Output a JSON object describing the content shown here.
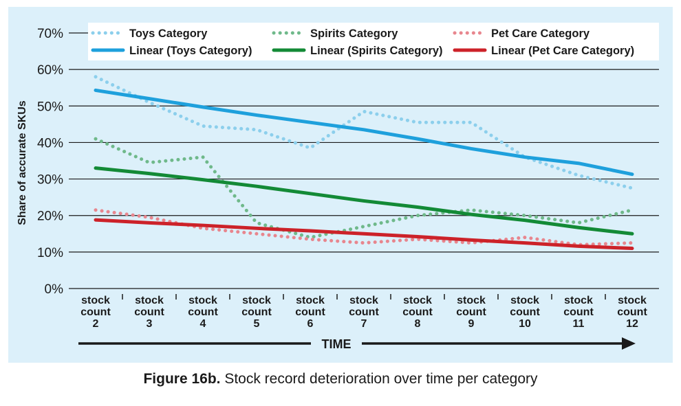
{
  "caption": {
    "label": "Figure 16b.",
    "text": " Stock record deterioration over time per category"
  },
  "chart_data": {
    "type": "line",
    "ylabel": "Share of accurate SKUs",
    "xlabel": "TIME",
    "ylim": [
      0,
      70
    ],
    "yticks": [
      "0%",
      "10%",
      "20%",
      "30%",
      "40%",
      "50%",
      "60%",
      "70%"
    ],
    "categories": [
      [
        "stock",
        "count",
        "2"
      ],
      [
        "stock",
        "count",
        "3"
      ],
      [
        "stock",
        "count",
        "4"
      ],
      [
        "stock",
        "count",
        "5"
      ],
      [
        "stock",
        "count",
        "6"
      ],
      [
        "stock",
        "count",
        "7"
      ],
      [
        "stock",
        "count",
        "8"
      ],
      [
        "stock",
        "count",
        "9"
      ],
      [
        "stock",
        "count",
        "10"
      ],
      [
        "stock",
        "count",
        "11"
      ],
      [
        "stock",
        "count",
        "12"
      ]
    ],
    "grid": true,
    "legend_position": "top",
    "series": [
      {
        "name": "Toys Category",
        "style": "dotted",
        "color": "#8ccfec",
        "values": [
          58,
          51,
          44.5,
          43.5,
          38.5,
          48.5,
          45.5,
          45.5,
          36,
          31,
          27.5
        ]
      },
      {
        "name": "Spirits Category",
        "style": "dotted",
        "color": "#6fb98a",
        "values": [
          41,
          34.5,
          36,
          18,
          14,
          17,
          20,
          21.5,
          20,
          18,
          21.5
        ]
      },
      {
        "name": "Pet Care Category",
        "style": "dotted",
        "color": "#e8868e",
        "values": [
          21.5,
          19.5,
          16.5,
          15,
          13.5,
          12.5,
          13.5,
          12.5,
          14,
          12,
          12.5
        ]
      },
      {
        "name": "Linear (Toys Category)",
        "style": "solid",
        "color": "#1ea0dc",
        "values": [
          54.3,
          52,
          49.7,
          47.5,
          45.5,
          43.5,
          41,
          38.3,
          36,
          34.3,
          31.3
        ]
      },
      {
        "name": "Linear (Spirits Category)",
        "style": "solid",
        "color": "#138a36",
        "values": [
          33,
          31.5,
          29.8,
          28,
          26,
          24,
          22.3,
          20.3,
          18.7,
          16.7,
          15
        ]
      },
      {
        "name": "Linear (Pet Care Category)",
        "style": "solid",
        "color": "#cc2229",
        "values": [
          18.8,
          18,
          17.3,
          16.5,
          15.8,
          15,
          14.2,
          13.3,
          12.5,
          11.6,
          11
        ]
      }
    ]
  }
}
